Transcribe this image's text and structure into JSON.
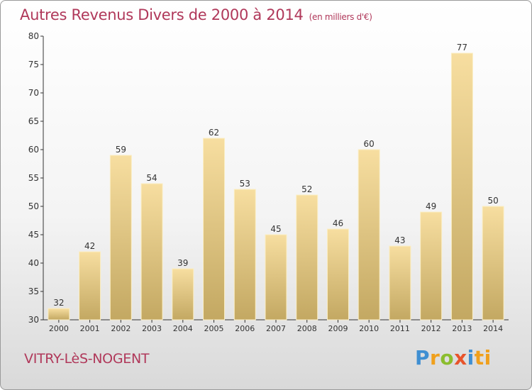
{
  "header": {
    "title": "Autres Revenus Divers de 2000 à 2014",
    "unit": "(en milliers d'€)"
  },
  "footer": {
    "city": "VITRY-LèS-NOGENT",
    "logo_letters": [
      "P",
      "r",
      "o",
      "x",
      "i",
      "ti"
    ]
  },
  "colors": {
    "title": "#b0385a",
    "bar_light": "#f7dea0",
    "bar_dark": "#c3a862",
    "axis": "#333333"
  },
  "chart_data": {
    "type": "bar",
    "title": "Autres Revenus Divers de 2000 à 2014",
    "xlabel": "",
    "ylabel": "",
    "categories": [
      "2000",
      "2001",
      "2002",
      "2003",
      "2004",
      "2005",
      "2006",
      "2007",
      "2008",
      "2009",
      "2010",
      "2011",
      "2012",
      "2013",
      "2014"
    ],
    "values": [
      32,
      42,
      59,
      54,
      39,
      62,
      53,
      45,
      52,
      46,
      60,
      43,
      49,
      77,
      50
    ],
    "ylim": [
      30,
      80
    ],
    "yticks": [
      30,
      35,
      40,
      45,
      50,
      55,
      60,
      65,
      70,
      75,
      80
    ],
    "grid": false,
    "data_labels": true
  }
}
